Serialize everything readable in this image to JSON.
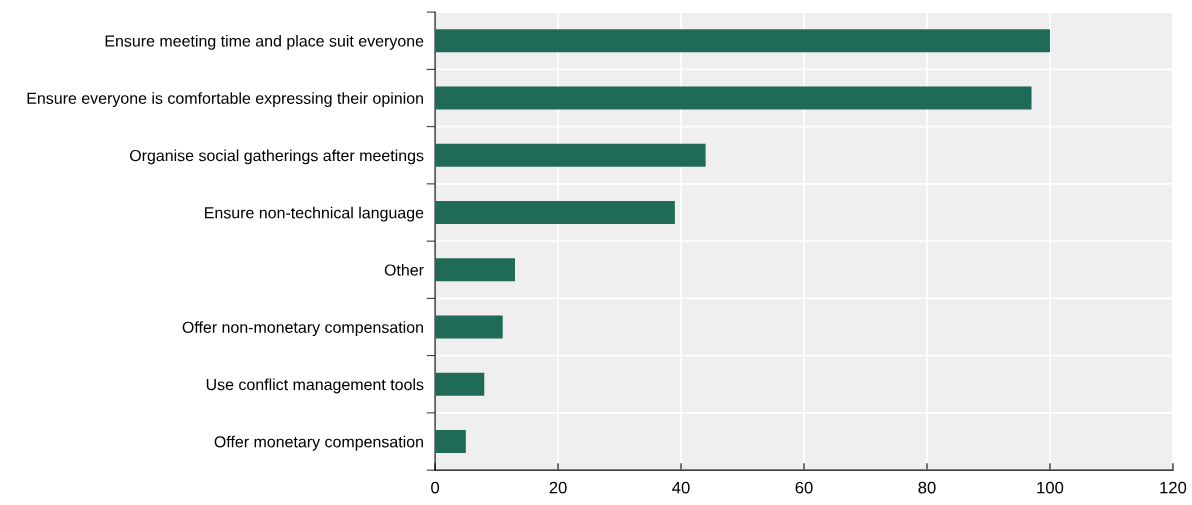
{
  "chart_data": {
    "type": "bar",
    "orientation": "horizontal",
    "categories": [
      "Ensure meeting time and place suit everyone",
      "Ensure everyone is comfortable expressing their opinion",
      "Organise social gatherings after meetings",
      "Ensure non-technical language",
      "Other",
      "Offer non-monetary compensation",
      "Use conflict management tools",
      "Offer monetary compensation"
    ],
    "values": [
      100,
      97,
      44,
      39,
      13,
      11,
      8,
      5
    ],
    "color": "#1f6b57",
    "xlim": [
      0,
      120
    ],
    "xticks": [
      0,
      20,
      40,
      60,
      80,
      100,
      120
    ],
    "grid": "x",
    "legend": false
  }
}
